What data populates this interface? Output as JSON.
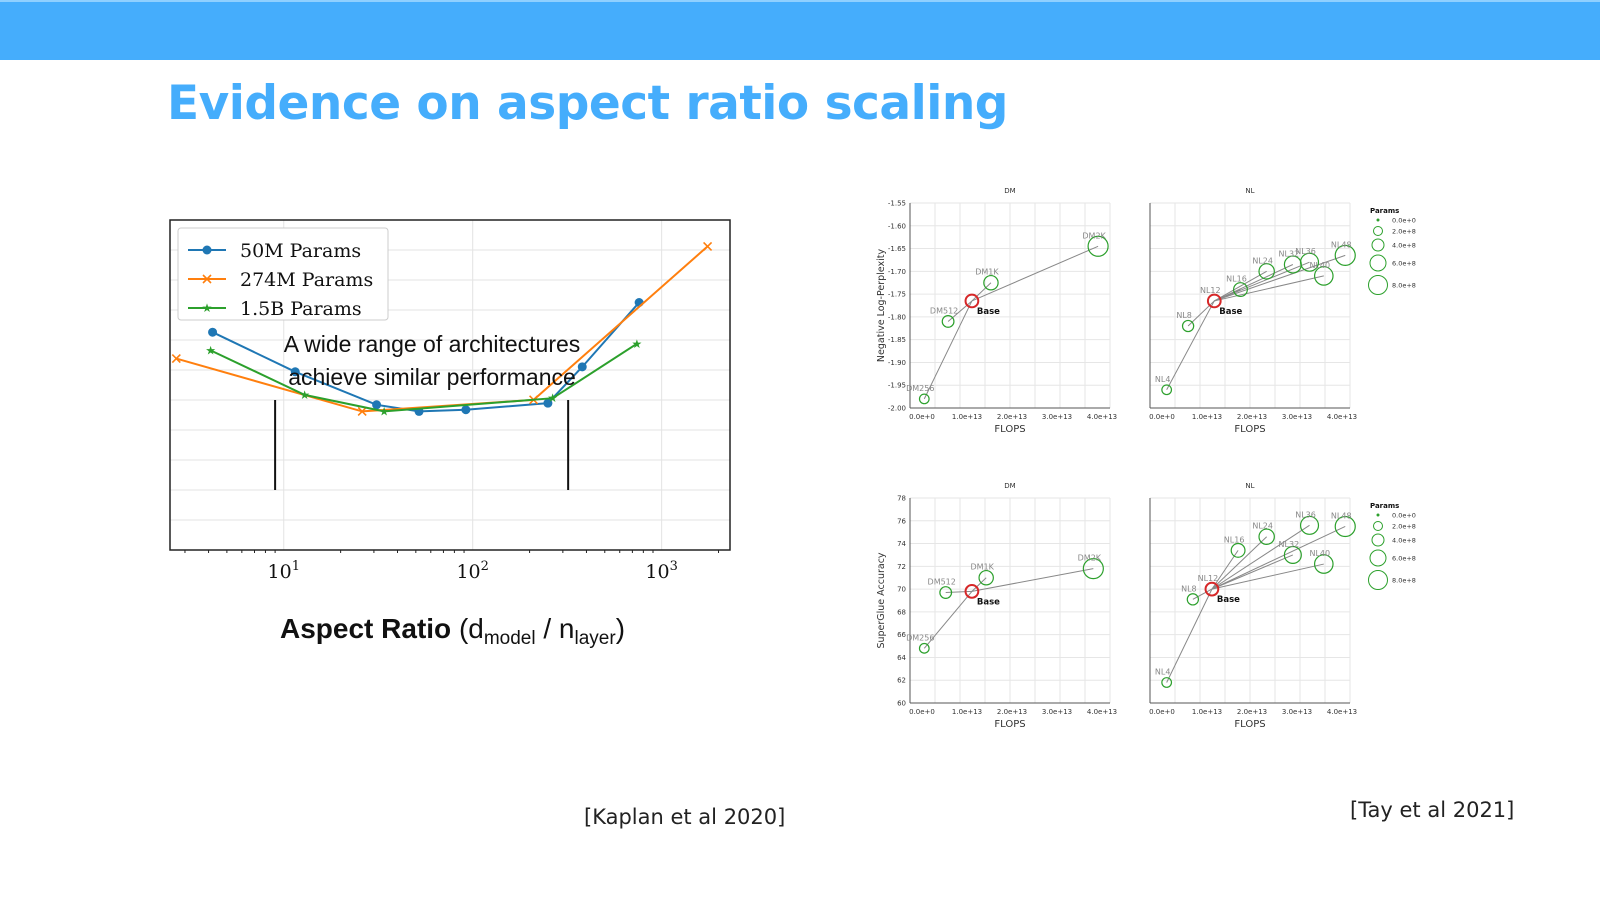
{
  "slide": {
    "title": "Evidence on aspect ratio scaling",
    "citation_left": "[Kaplan et al 2020]",
    "citation_right": "[Tay et al 2021]"
  },
  "chart_data": [
    {
      "type": "line",
      "x_scale": "log",
      "xlim": [
        2.5,
        2300
      ],
      "ylim": [
        0,
        1
      ],
      "grid": true,
      "legend_position": "top-left",
      "x_tick_labels": [
        "10^1",
        "10^2",
        "10^3"
      ],
      "x_ticks": [
        10,
        100,
        1000
      ],
      "xlabel": "Aspect Ratio",
      "xlabel_suffix_d": "d",
      "xlabel_sub_model": "model",
      "xlabel_slash": " / ",
      "xlabel_n": "n",
      "xlabel_sub_layer": "layer",
      "annotation_line1": "A wide range of architectures",
      "annotation_line2": "achieve similar performance",
      "annotation_marks_x": [
        9,
        320
      ],
      "series": [
        {
          "name": "50M Params",
          "color": "#1f77b4",
          "marker": "circle",
          "x": [
            4.2,
            11.5,
            31,
            52,
            92,
            250,
            380,
            760
          ],
          "y": [
            0.66,
            0.54,
            0.44,
            0.42,
            0.425,
            0.445,
            0.555,
            0.75
          ]
        },
        {
          "name": "274M Params",
          "color": "#ff7f0e",
          "marker": "x",
          "x": [
            2.7,
            26,
            210,
            1750
          ],
          "y": [
            0.58,
            0.42,
            0.455,
            0.92
          ]
        },
        {
          "name": "1.5B Params",
          "color": "#2ca02c",
          "marker": "star",
          "x": [
            4.1,
            12.9,
            34,
            265,
            740
          ],
          "y": [
            0.605,
            0.47,
            0.42,
            0.46,
            0.625
          ]
        }
      ]
    },
    {
      "type": "scatter",
      "title": "DM",
      "xlabel": "FLOPS",
      "ylabel": "Negative Log-Perplexity",
      "xlim": [
        0,
        42000000000000.0
      ],
      "ylim": [
        -2.0,
        -1.55
      ],
      "x_tick_labels": [
        "0.0e+0",
        "1.0e+13",
        "2.0e+13",
        "3.0e+13",
        "4.0e+13"
      ],
      "y_tick_labels": [
        "-1.55",
        "-1.60",
        "-1.65",
        "-1.70",
        "-1.75",
        "-1.80",
        "-1.85",
        "-1.90",
        "-1.95",
        "-2.00"
      ],
      "points": [
        {
          "label": "DM256",
          "x": 3000000000000.0,
          "y": -1.98,
          "size": 1
        },
        {
          "label": "DM512",
          "x": 8000000000000.0,
          "y": -1.81,
          "size": 1.4
        },
        {
          "label": "Base",
          "x": 13000000000000.0,
          "y": -1.765,
          "size": 1.6,
          "base": true
        },
        {
          "label": "DM1K",
          "x": 17000000000000.0,
          "y": -1.725,
          "size": 1.9
        },
        {
          "label": "DM2K",
          "x": 39500000000000.0,
          "y": -1.645,
          "size": 3
        }
      ]
    },
    {
      "type": "scatter",
      "title": "NL",
      "xlabel": "FLOPS",
      "xlim": [
        0,
        42000000000000.0
      ],
      "ylim": [
        -2.0,
        -1.55
      ],
      "x_tick_labels": [
        "0.0e+0",
        "1.0e+13",
        "2.0e+13",
        "3.0e+13",
        "4.0e+13"
      ],
      "points": [
        {
          "label": "NL4",
          "x": 3500000000000.0,
          "y": -1.96,
          "size": 1
        },
        {
          "label": "NL8",
          "x": 8000000000000.0,
          "y": -1.82,
          "size": 1.3
        },
        {
          "label": "NL12",
          "x": 13500000000000.0,
          "y": -1.765,
          "size": 1.6,
          "base": true
        },
        {
          "label": "Base",
          "x": 13500000000000.0,
          "y": -1.765,
          "size": 1.6,
          "base": true
        },
        {
          "label": "NL16",
          "x": 19000000000000.0,
          "y": -1.74,
          "size": 1.8
        },
        {
          "label": "NL24",
          "x": 24500000000000.0,
          "y": -1.7,
          "size": 2.1
        },
        {
          "label": "NL32",
          "x": 30000000000000.0,
          "y": -1.685,
          "size": 2.4
        },
        {
          "label": "NL36",
          "x": 33500000000000.0,
          "y": -1.68,
          "size": 2.6
        },
        {
          "label": "NL40",
          "x": 36500000000000.0,
          "y": -1.71,
          "size": 2.7
        },
        {
          "label": "NL48",
          "x": 41000000000000.0,
          "y": -1.665,
          "size": 3
        }
      ]
    },
    {
      "type": "scatter",
      "title": "DM",
      "xlabel": "FLOPS",
      "ylabel": "SuperGlue Accuracy",
      "xlim": [
        0,
        42000000000000.0
      ],
      "ylim": [
        60,
        78
      ],
      "x_tick_labels": [
        "0.0e+0",
        "1.0e+13",
        "2.0e+13",
        "3.0e+13",
        "4.0e+13"
      ],
      "y_tick_labels": [
        "78",
        "76",
        "74",
        "72",
        "70",
        "68",
        "66",
        "64",
        "62",
        "60"
      ],
      "points": [
        {
          "label": "DM256",
          "x": 3000000000000.0,
          "y": 64.8,
          "size": 1
        },
        {
          "label": "DM512",
          "x": 7500000000000.0,
          "y": 69.7,
          "size": 1.4
        },
        {
          "label": "Base",
          "x": 13000000000000.0,
          "y": 69.8,
          "size": 1.6,
          "base": true
        },
        {
          "label": "DM1K",
          "x": 16000000000000.0,
          "y": 71.0,
          "size": 1.9
        },
        {
          "label": "DM2K",
          "x": 38500000000000.0,
          "y": 71.8,
          "size": 3
        }
      ]
    },
    {
      "type": "scatter",
      "title": "NL",
      "xlabel": "FLOPS",
      "xlim": [
        0,
        42000000000000.0
      ],
      "ylim": [
        60,
        78
      ],
      "x_tick_labels": [
        "0.0e+0",
        "1.0e+13",
        "2.0e+13",
        "3.0e+13",
        "4.0e+13"
      ],
      "points": [
        {
          "label": "NL4",
          "x": 3500000000000.0,
          "y": 61.8,
          "size": 1
        },
        {
          "label": "NL8",
          "x": 9000000000000.0,
          "y": 69.1,
          "size": 1.3
        },
        {
          "label": "NL12",
          "x": 13000000000000.0,
          "y": 70.0,
          "size": 1.6,
          "base": true
        },
        {
          "label": "Base",
          "x": 13000000000000.0,
          "y": 70.0,
          "size": 1.6,
          "base": true
        },
        {
          "label": "NL16",
          "x": 18500000000000.0,
          "y": 73.4,
          "size": 1.8
        },
        {
          "label": "NL24",
          "x": 24500000000000.0,
          "y": 74.6,
          "size": 2.1
        },
        {
          "label": "NL32",
          "x": 30000000000000.0,
          "y": 73.0,
          "size": 2.4
        },
        {
          "label": "NL36",
          "x": 33500000000000.0,
          "y": 75.6,
          "size": 2.6
        },
        {
          "label": "NL40",
          "x": 36500000000000.0,
          "y": 72.2,
          "size": 2.7
        },
        {
          "label": "NL48",
          "x": 41000000000000.0,
          "y": 75.5,
          "size": 3
        }
      ]
    }
  ],
  "params_legend": {
    "title": "Params",
    "entries": [
      "0.0e+0",
      "2.0e+8",
      "4.0e+8",
      "6.0e+8",
      "8.0e+8"
    ]
  }
}
